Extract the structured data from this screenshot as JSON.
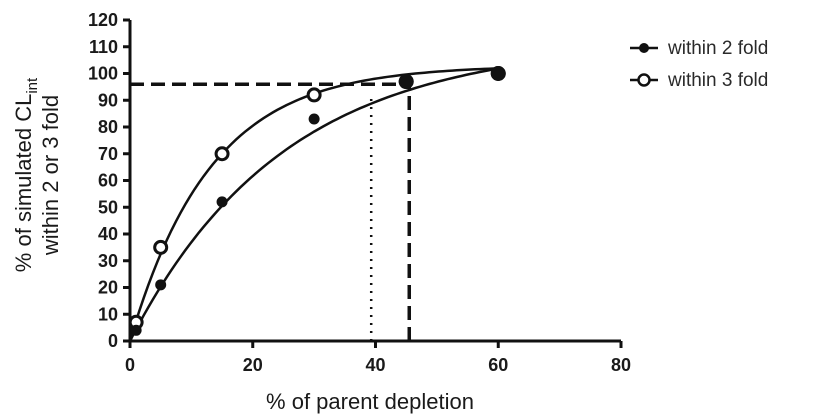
{
  "chart_data": {
    "type": "scatter",
    "xlabel": "% of parent depletion",
    "ylabel_line1": "% of simulated CL",
    "ylabel_sub": "int",
    "ylabel_line2": "within 2 or 3 fold",
    "xlim": [
      0,
      80
    ],
    "ylim": [
      0,
      120
    ],
    "x_ticks": [
      0,
      20,
      40,
      60,
      80
    ],
    "y_ticks": [
      0,
      10,
      20,
      30,
      40,
      50,
      60,
      70,
      80,
      90,
      100,
      110,
      120
    ],
    "grid": false,
    "legend_position": "top-right",
    "series": [
      {
        "name": "within 2 fold",
        "marker": "filled-circle",
        "color": "#111111",
        "x": [
          1,
          5,
          15,
          30,
          45,
          60
        ],
        "y": [
          4,
          21,
          52,
          83,
          97,
          100
        ],
        "fit_curve": {
          "x_start": 0,
          "x_end": 60,
          "plateau": 112,
          "k": 0.04
        }
      },
      {
        "name": "within 3 fold",
        "marker": "open-circle",
        "color": "#111111",
        "x": [
          1,
          5,
          15,
          30,
          45,
          60
        ],
        "y": [
          7,
          35,
          70,
          92,
          97,
          100
        ],
        "fit_curve": {
          "x_start": 0,
          "x_end": 60,
          "plateau": 103,
          "k": 0.076
        }
      }
    ],
    "reference_lines": [
      {
        "style": "dashed",
        "orientation": "horizontal",
        "y": 96,
        "x_from": 0,
        "x_to": 45.5
      },
      {
        "style": "dashed",
        "orientation": "vertical",
        "x": 45.5,
        "y_from": 0,
        "y_to": 96
      },
      {
        "style": "dotted",
        "orientation": "vertical",
        "x": 39.3,
        "y_from": 0,
        "y_to": 92
      }
    ]
  }
}
